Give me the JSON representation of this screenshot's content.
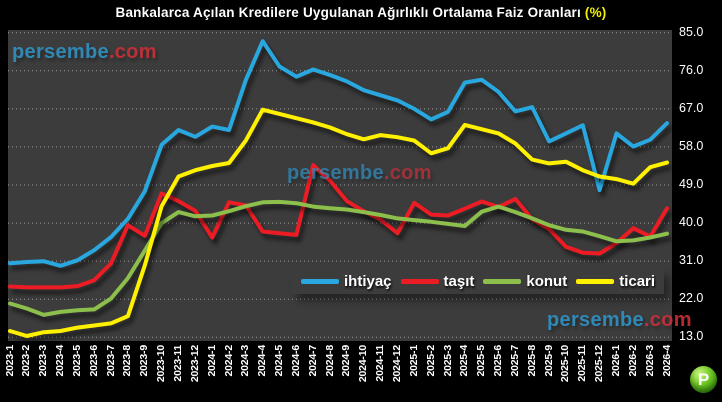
{
  "title": {
    "main": "Bankalarca Açılan Kredilere Uygulanan Ağırlıklı Ortalama Faiz Oranları",
    "suffix": " (%)"
  },
  "watermark": {
    "name": "persembe",
    "tld": ".com",
    "name_color": "#2f8fc0",
    "tld_color": "#c62f38"
  },
  "logo": {
    "letter": "P",
    "color": "#4aaa12"
  },
  "colors": {
    "outer_background": "#000000",
    "plot_background": "#3c3c3c",
    "grid": "#ffffff",
    "text": "#ffffff",
    "title_pct": "#f3ef00"
  },
  "legend": [
    {
      "label": "ihtiyaç",
      "color": "#29a8e0"
    },
    {
      "label": "taşıt",
      "color": "#ec1c24"
    },
    {
      "label": "konut",
      "color": "#8cbf4c"
    },
    {
      "label": "ticari",
      "color": "#fff100"
    }
  ],
  "chart_data": {
    "type": "line",
    "title": "Bankalarca Açılan Kredilere Uygulanan Ağırlıklı Ortalama Faiz Oranları (%)",
    "grid": true,
    "legend_position": "bottom-inside",
    "ylim": [
      13,
      85
    ],
    "yticks": [
      85,
      76,
      67,
      58,
      49,
      40,
      31,
      22,
      13
    ],
    "ytick_labels": [
      "85.0",
      "76.0",
      "67.0",
      "58.0",
      "49.0",
      "40.0",
      "31.0",
      "22.0",
      "13.0"
    ],
    "x": [
      "2023-1",
      "2023-2",
      "2023-3",
      "2023-4",
      "2023-5",
      "2023-6",
      "2023-7",
      "2023-8",
      "2023-9",
      "2023-10",
      "2023-11",
      "2023-12",
      "2024-1",
      "2024-2",
      "2024-3",
      "2024-4",
      "2024-5",
      "2024-6",
      "2024-7",
      "2024-8",
      "2024-9",
      "2024-10",
      "2024-11",
      "2024-12",
      "2025-1",
      "2025-2",
      "2025-3",
      "2025-4",
      "2025-5",
      "2025-6",
      "2025-7",
      "2025-8",
      "2025-9",
      "2025-10",
      "2025-11",
      "2025-12",
      "2026-1",
      "2026-2",
      "2026-3",
      "2026-4"
    ],
    "series": [
      {
        "name": "ihtiyaç",
        "color": "#29a8e0",
        "values": [
          30.5,
          30.8,
          31.0,
          29.9,
          31.2,
          33.6,
          36.7,
          41.0,
          47.5,
          58.5,
          62.0,
          60.4,
          62.8,
          62.0,
          73.8,
          83.0,
          77.0,
          74.6,
          76.3,
          75.0,
          73.5,
          71.4,
          70.2,
          69.0,
          67.0,
          64.5,
          66.3,
          73.2,
          73.9,
          71.0,
          66.4,
          67.4,
          59.3,
          61.2,
          63.1,
          47.8,
          61.2,
          58.1,
          59.7,
          63.6
        ]
      },
      {
        "name": "taşıt",
        "color": "#ec1c24",
        "values": [
          25.0,
          24.8,
          24.8,
          24.8,
          25.1,
          26.5,
          30.5,
          39.5,
          37.0,
          47.0,
          45.2,
          42.9,
          36.6,
          44.9,
          44.2,
          38.0,
          37.6,
          37.2,
          53.7,
          50.0,
          45.2,
          42.8,
          40.8,
          37.6,
          44.8,
          42.0,
          41.8,
          43.4,
          45.1,
          43.8,
          45.7,
          40.9,
          38.6,
          34.4,
          33.0,
          32.8,
          35.3,
          38.8,
          36.8,
          43.5
        ]
      },
      {
        "name": "konut",
        "color": "#8cbf4c",
        "values": [
          21.0,
          19.8,
          18.3,
          19.0,
          19.4,
          19.6,
          22.2,
          27.0,
          33.5,
          40.0,
          42.6,
          41.6,
          41.8,
          42.8,
          44.0,
          44.9,
          45.0,
          44.7,
          43.9,
          43.5,
          43.2,
          42.6,
          41.9,
          41.1,
          40.7,
          40.3,
          39.8,
          39.3,
          42.7,
          43.9,
          42.6,
          41.1,
          39.5,
          38.4,
          38.0,
          36.9,
          35.7,
          35.9,
          36.6,
          37.5
        ]
      },
      {
        "name": "ticari",
        "color": "#fff100",
        "values": [
          14.5,
          13.3,
          14.2,
          14.5,
          15.3,
          15.8,
          16.3,
          18.0,
          30.0,
          44.0,
          51.0,
          52.5,
          53.5,
          54.2,
          59.5,
          66.8,
          65.8,
          64.8,
          63.8,
          62.6,
          61.0,
          59.8,
          60.8,
          60.3,
          59.5,
          56.5,
          57.7,
          63.2,
          62.2,
          61.2,
          58.8,
          55.0,
          54.1,
          54.5,
          52.5,
          51.0,
          50.4,
          49.3,
          53.2,
          54.3
        ]
      }
    ]
  }
}
